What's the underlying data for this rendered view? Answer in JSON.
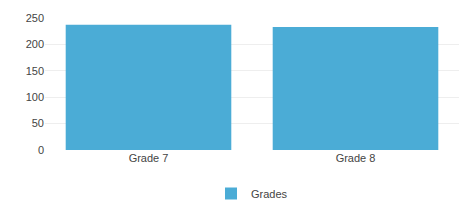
{
  "chart_data": {
    "type": "bar",
    "categories": [
      "Grade 7",
      "Grade 8"
    ],
    "series": [
      {
        "name": "Grades",
        "color": "#4BACD6",
        "values": [
          237,
          233
        ]
      }
    ],
    "ylim": [
      0,
      250
    ],
    "yticks": [
      0,
      50,
      100,
      150,
      200,
      250
    ],
    "grid": true,
    "legend": "bottom"
  }
}
